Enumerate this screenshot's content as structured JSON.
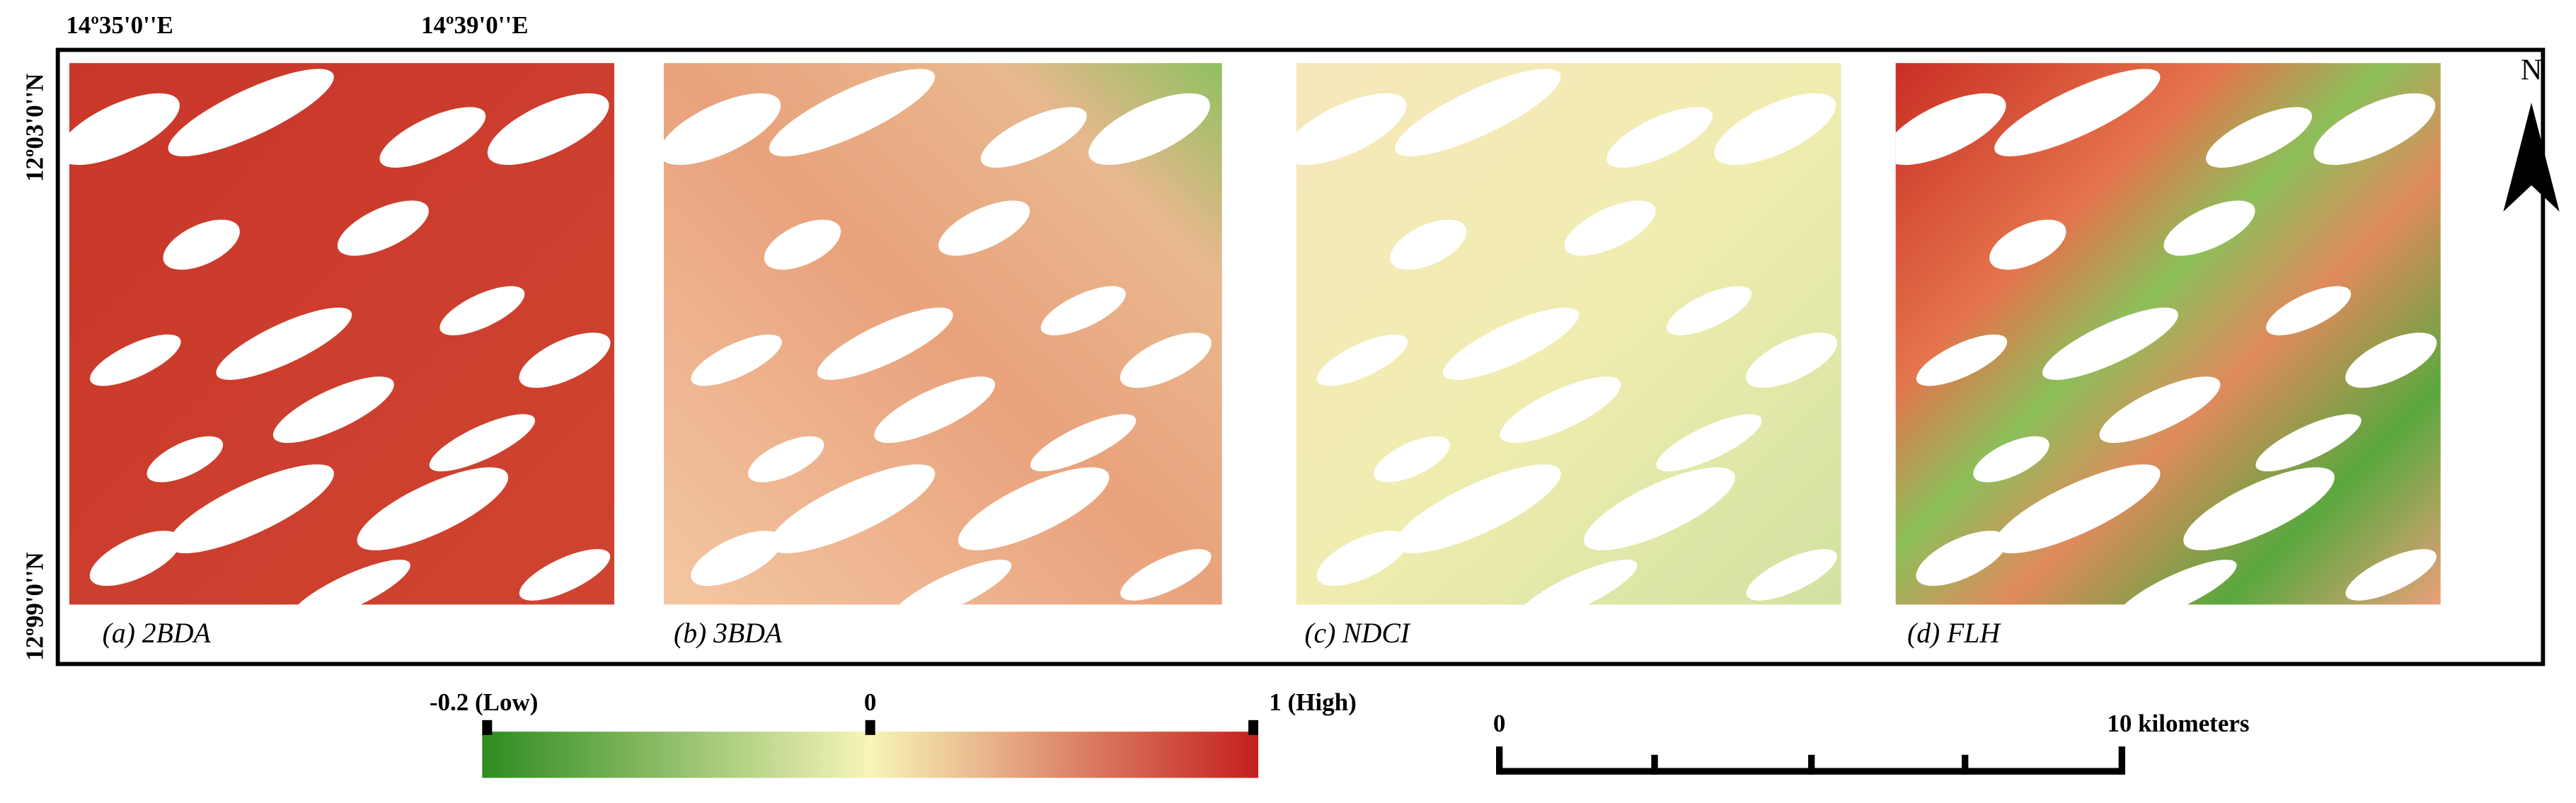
{
  "coordinates": {
    "top": [
      "14º35'0''E",
      "14º39'0''E"
    ],
    "left": [
      "12º03'0''N",
      "12º99'0''N"
    ]
  },
  "panels": [
    {
      "label": "(a) 2BDA"
    },
    {
      "label": "(b) 3BDA"
    },
    {
      "label": "(c) NDCI"
    },
    {
      "label": "(d) FLH"
    }
  ],
  "legend": {
    "ticks": [
      "-0.2 (Low)",
      "0",
      "1 (High)"
    ]
  },
  "scale_bar": {
    "start": "0",
    "end": "10 kilometers"
  },
  "north": "N"
}
